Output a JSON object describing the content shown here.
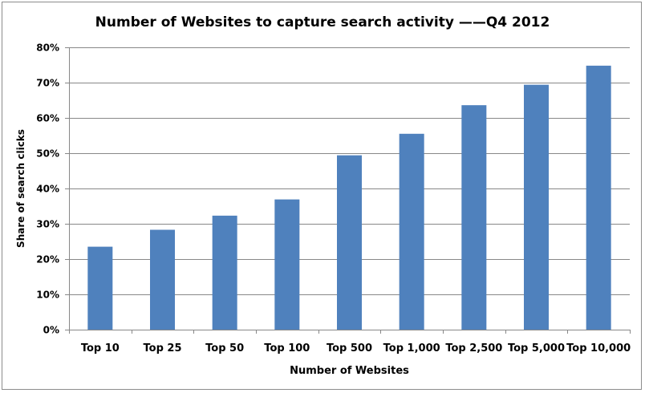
{
  "chart_data": {
    "type": "bar",
    "title": "Number of Websites to capture search activity ——Q4 2012",
    "xlabel": "Number of Websites",
    "ylabel": "Share of search clicks",
    "categories": [
      "Top 10",
      "Top 25",
      "Top 50",
      "Top 100",
      "Top 500",
      "Top 1,000",
      "Top 2,500",
      "Top 5,000",
      "Top 10,000"
    ],
    "values": [
      23.5,
      28.3,
      32.3,
      36.9,
      49.4,
      55.5,
      63.6,
      69.4,
      74.8
    ],
    "ylim": [
      0,
      80
    ],
    "yticks": [
      0,
      10,
      20,
      30,
      40,
      50,
      60,
      70,
      80
    ],
    "ytick_labels": [
      "0%",
      "10%",
      "20%",
      "30%",
      "40%",
      "50%",
      "60%",
      "70%",
      "80%"
    ],
    "grid": true,
    "bar_color": "#4f81bd",
    "legend": "none"
  }
}
